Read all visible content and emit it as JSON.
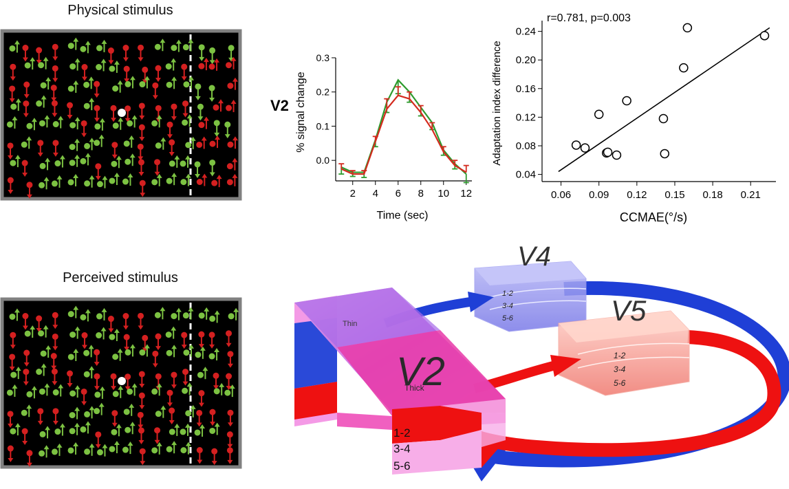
{
  "panels": {
    "physical_title": "Physical stimulus",
    "perceived_title": "Perceived stimulus"
  },
  "colors": {
    "red_dot": "#d42020",
    "green_dot": "#7cc242",
    "frame": "#808080",
    "v4_blue": "#6e6ee8",
    "v5_red": "#f06060",
    "v2_pink": "#f07fd8",
    "arrow_blue": "#1f3fd6",
    "arrow_red": "#ee1111"
  },
  "chart_data": [
    {
      "type": "line",
      "row_label": "V2",
      "xlabel": "Time (sec)",
      "ylabel": "% signal change",
      "xlim": [
        0.5,
        12.5
      ],
      "ylim": [
        -0.06,
        0.3
      ],
      "xticks": [
        "2",
        "4",
        "6",
        "8",
        "10",
        "12"
      ],
      "yticks": [
        "0.0",
        "0.1",
        "0.2",
        "0.3"
      ],
      "x": [
        1,
        2,
        3,
        4,
        5,
        6,
        7,
        8,
        9,
        10,
        11,
        12
      ],
      "series": [
        {
          "color": "#2e9b2e",
          "values": [
            -0.02,
            -0.035,
            -0.035,
            0.06,
            0.17,
            0.235,
            0.2,
            0.155,
            0.11,
            0.03,
            -0.01,
            -0.04
          ],
          "err": [
            0.02,
            0.012,
            0.015,
            0.02,
            0.03,
            0.04,
            0.03,
            0.025,
            0.02,
            0.015,
            0.015,
            0.025
          ]
        },
        {
          "color": "#d42a1e",
          "values": [
            -0.025,
            -0.04,
            -0.04,
            0.055,
            0.15,
            0.19,
            0.18,
            0.14,
            0.09,
            0.025,
            -0.015,
            -0.035
          ],
          "err": [
            0.015,
            0.01,
            0.01,
            0.015,
            0.03,
            0.025,
            0.02,
            0.02,
            0.02,
            0.015,
            0.015,
            0.02
          ]
        }
      ]
    },
    {
      "type": "scatter",
      "annotation": "r=0.781, p=0.003",
      "xlabel": "CCMAE(°/s)",
      "ylabel": "Adaptation index difference",
      "xlim": [
        0.045,
        0.23
      ],
      "ylim": [
        0.03,
        0.255
      ],
      "xticks": [
        "0.06",
        "0.09",
        "0.12",
        "0.15",
        "0.18",
        "0.21"
      ],
      "yticks": [
        "0.04",
        "0.08",
        "0.12",
        "0.16",
        "0.20",
        "0.24"
      ],
      "points": [
        [
          0.072,
          0.081
        ],
        [
          0.079,
          0.077
        ],
        [
          0.09,
          0.124
        ],
        [
          0.096,
          0.07
        ],
        [
          0.097,
          0.071
        ],
        [
          0.104,
          0.067
        ],
        [
          0.112,
          0.143
        ],
        [
          0.141,
          0.118
        ],
        [
          0.142,
          0.069
        ],
        [
          0.157,
          0.189
        ],
        [
          0.16,
          0.245
        ],
        [
          0.221,
          0.234
        ]
      ],
      "fit_line": [
        [
          0.058,
          0.044
        ],
        [
          0.225,
          0.245
        ]
      ]
    }
  ],
  "diagram": {
    "v2": {
      "label": "V2",
      "thin": "Thin",
      "thick": "Thick",
      "layers": [
        "1-2",
        "3-4",
        "5-6"
      ]
    },
    "v4": {
      "label": "V4",
      "layers": [
        "1-2",
        "3-4",
        "5-6"
      ]
    },
    "v5": {
      "label": "V5",
      "layers": [
        "1-2",
        "3-4",
        "5-6"
      ]
    }
  }
}
